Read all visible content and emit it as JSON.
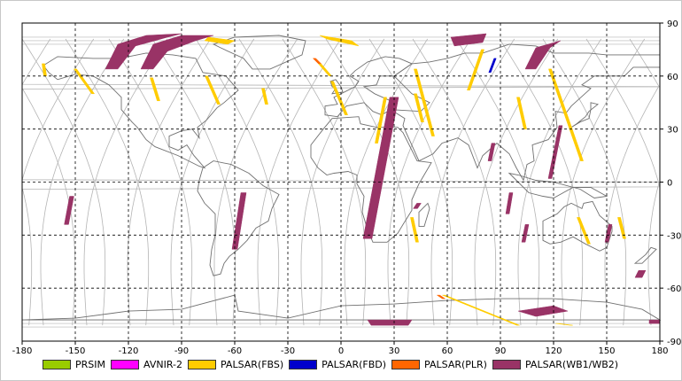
{
  "map": {
    "x_ticks": [
      "-180",
      "-150",
      "-120",
      "-90",
      "-60",
      "-30",
      "0",
      "30",
      "60",
      "90",
      "120",
      "150",
      "180"
    ],
    "y_ticks": [
      "90",
      "60",
      "30",
      "0",
      "-30",
      "-60",
      "-90"
    ]
  },
  "legend": [
    {
      "label": "PRSIM",
      "color": "#99cc00"
    },
    {
      "label": "AVNIR-2",
      "color": "#ff00ff"
    },
    {
      "label": "PALSAR(FBS)",
      "color": "#ffcc00"
    },
    {
      "label": "PALSAR(FBD)",
      "color": "#0000cc"
    },
    {
      "label": "PALSAR(PLR)",
      "color": "#ff6600"
    },
    {
      "label": "PALSAR(WB1/WB2)",
      "color": "#993366"
    }
  ],
  "colors": {
    "orbit_track": "#b4b4b4",
    "coastline": "#707070",
    "grid": "#000000"
  }
}
